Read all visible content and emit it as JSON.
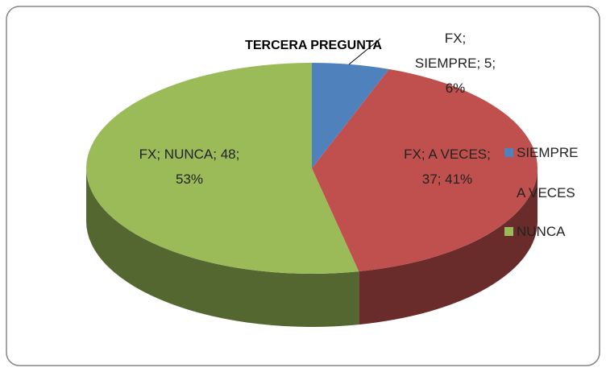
{
  "chart_data": {
    "type": "pie",
    "title": "TERCERA PREGUNTA",
    "categories": [
      "SIEMPRE",
      "A VECES",
      "NUNCA"
    ],
    "values": [
      5,
      37,
      48
    ],
    "value_labels": [
      "FX; SIEMPRE; 5; 6%",
      "FX; A VECES; 37; 41%",
      "FX; NUNCA; 48; 53%"
    ],
    "colors": [
      "#4f81bd",
      "#c0504d",
      "#9bbb59"
    ],
    "legend": "right"
  }
}
